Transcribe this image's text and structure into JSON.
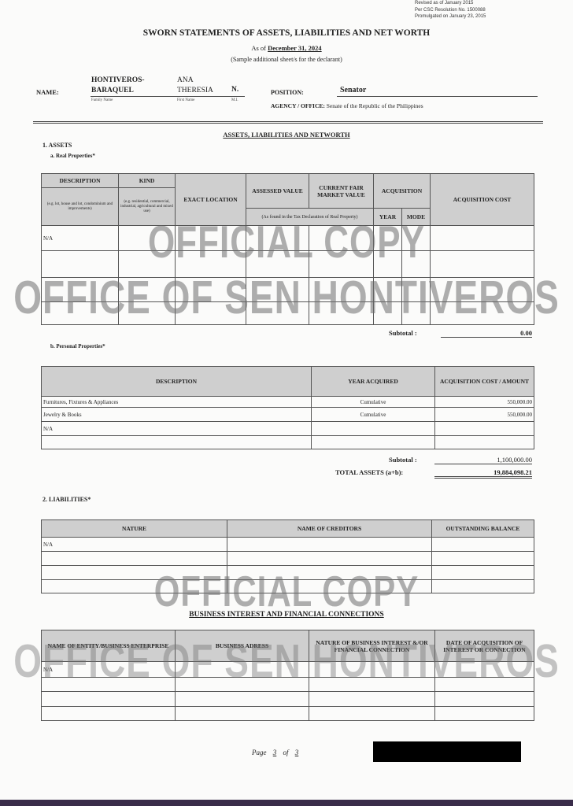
{
  "revision": [
    "Revised as of January 2015",
    "Per CSC Resolution No. 1500088",
    "Promulgated on January 23, 2015"
  ],
  "title": "SWORN STATEMENTS OF ASSETS, LIABILITIES AND  NET WORTH",
  "as_of_label": "As of",
  "as_of_date": "December 31, 2024",
  "sample_note": "(Sample additional sheet/s for the declarant)",
  "name": {
    "label": "NAME:",
    "family_1": "HONTIVEROS-",
    "family_2": "BARAQUEL",
    "first_1": "ANA",
    "first_2": "THERESIA",
    "mi": "N.",
    "family_caption": "Family Name",
    "first_caption": "First Name",
    "mi_caption": "M.I."
  },
  "position": {
    "label": "POSITION:",
    "value": "Senator"
  },
  "agency": {
    "label": "AGENCY / OFFICE:",
    "value": "Senate of the Republic of the Philippines"
  },
  "section_title": "ASSETS, LIABILITIES AND NETWORTH",
  "assets_label": "1. ASSETS",
  "real": {
    "label": "a. Real Properties*",
    "headers": {
      "description": "DESCRIPTION",
      "description_note": "(e.g. lot, house and lot, condominium and improvements)",
      "kind": "KIND",
      "kind_note": "(e.g. residential, commercial, industrial, agricultural and mixed use)",
      "location": "EXACT LOCATION",
      "assessed": "ASSESSED VALUE",
      "fair": "CURRENT FAIR MARKET VALUE",
      "tax_note": "(As found in the Tax Declaration of Real Property)",
      "acquisition": "ACQUISITION",
      "year": "YEAR",
      "mode": "MODE",
      "cost": "ACQUISITION COST"
    },
    "rows": [
      "N/A",
      "",
      "",
      ""
    ],
    "subtotal_label": "Subtotal :",
    "subtotal": "0.00"
  },
  "personal": {
    "label": "b. Personal Properties*",
    "headers": {
      "description": "DESCRIPTION",
      "year": "YEAR ACQUIRED",
      "cost": "ACQUISITION COST / AMOUNT"
    },
    "rows": [
      {
        "description": "Furnitures, Fixtures & Appliances",
        "year": "Cumulative",
        "cost": "550,000.00"
      },
      {
        "description": "Jewelry & Books",
        "year": "Cumulative",
        "cost": "550,000.00"
      },
      {
        "description": "N/A",
        "year": "",
        "cost": ""
      },
      {
        "description": "",
        "year": "",
        "cost": ""
      }
    ],
    "subtotal_label": "Subtotal :",
    "subtotal": "1,100,000.00",
    "total_label": "TOTAL ASSETS (a+b):",
    "total": "19,884,098.21"
  },
  "liabilities": {
    "label": "2. LIABILITIES*",
    "headers": {
      "nature": "NATURE",
      "creditors": "NAME OF CREDITORS",
      "balance": "OUTSTANDING BALANCE"
    },
    "rows": [
      "N/A",
      "",
      "",
      ""
    ]
  },
  "business": {
    "title": "BUSINESS INTEREST AND FINANCIAL CONNECTIONS",
    "headers": {
      "entity": "NAME OF ENTITY/BUSINESS ENTERPRISE",
      "address": "BUSINESS ADRESS",
      "nature": "NATURE OF BUSINESS INTEREST &/OR FINANCIAL CONNECTION",
      "date": "DATE OF ACQUISITION OF INTEREST OR CONNECTION"
    },
    "rows": [
      "N/A",
      "",
      "",
      ""
    ]
  },
  "watermark": {
    "line1": "OFFICIAL COPY",
    "line2": "OFFICE OF SEN HONTIVEROS"
  },
  "page": {
    "label": "Page",
    "current": "3",
    "of": "of",
    "total": "3"
  }
}
